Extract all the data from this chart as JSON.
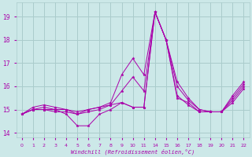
{
  "xlabel": "Windchill (Refroidissement éolien,°C)",
  "background_color": "#cce8e8",
  "grid_color": "#aacccc",
  "line_color": "#aa00aa",
  "xlim": [
    -0.5,
    20.5
  ],
  "ylim": [
    13.8,
    19.6
  ],
  "xtick_labels": [
    "0",
    "1",
    "2",
    "3",
    "4",
    "5",
    "6",
    "7",
    "8",
    "9",
    "10",
    "11",
    "14",
    "15",
    "16",
    "17",
    "18",
    "19",
    "20",
    "21",
    "22"
  ],
  "ytick_positions": [
    14,
    15,
    16,
    17,
    18,
    19
  ],
  "series": [
    {
      "y": [
        14.8,
        15.0,
        15.0,
        15.0,
        14.8,
        14.3,
        14.3,
        14.8,
        15.0,
        15.3,
        15.1,
        15.1,
        19.2,
        18.0,
        15.5,
        15.3,
        14.9,
        14.9,
        14.9,
        15.4,
        16.0
      ]
    },
    {
      "y": [
        14.8,
        15.0,
        15.0,
        14.9,
        14.9,
        14.8,
        15.0,
        15.1,
        15.2,
        15.3,
        15.1,
        15.1,
        19.2,
        18.0,
        15.6,
        15.2,
        14.9,
        14.9,
        14.9,
        15.3,
        15.9
      ]
    },
    {
      "y": [
        14.8,
        15.0,
        15.1,
        15.0,
        15.0,
        14.8,
        14.9,
        15.0,
        15.2,
        15.8,
        16.4,
        15.8,
        19.2,
        18.0,
        16.0,
        15.4,
        15.0,
        14.9,
        14.9,
        15.5,
        16.1
      ]
    },
    {
      "y": [
        14.8,
        15.1,
        15.2,
        15.1,
        15.0,
        14.9,
        15.0,
        15.1,
        15.3,
        16.5,
        17.2,
        16.5,
        19.2,
        18.0,
        16.2,
        15.5,
        15.0,
        14.9,
        14.9,
        15.6,
        16.2
      ]
    }
  ]
}
